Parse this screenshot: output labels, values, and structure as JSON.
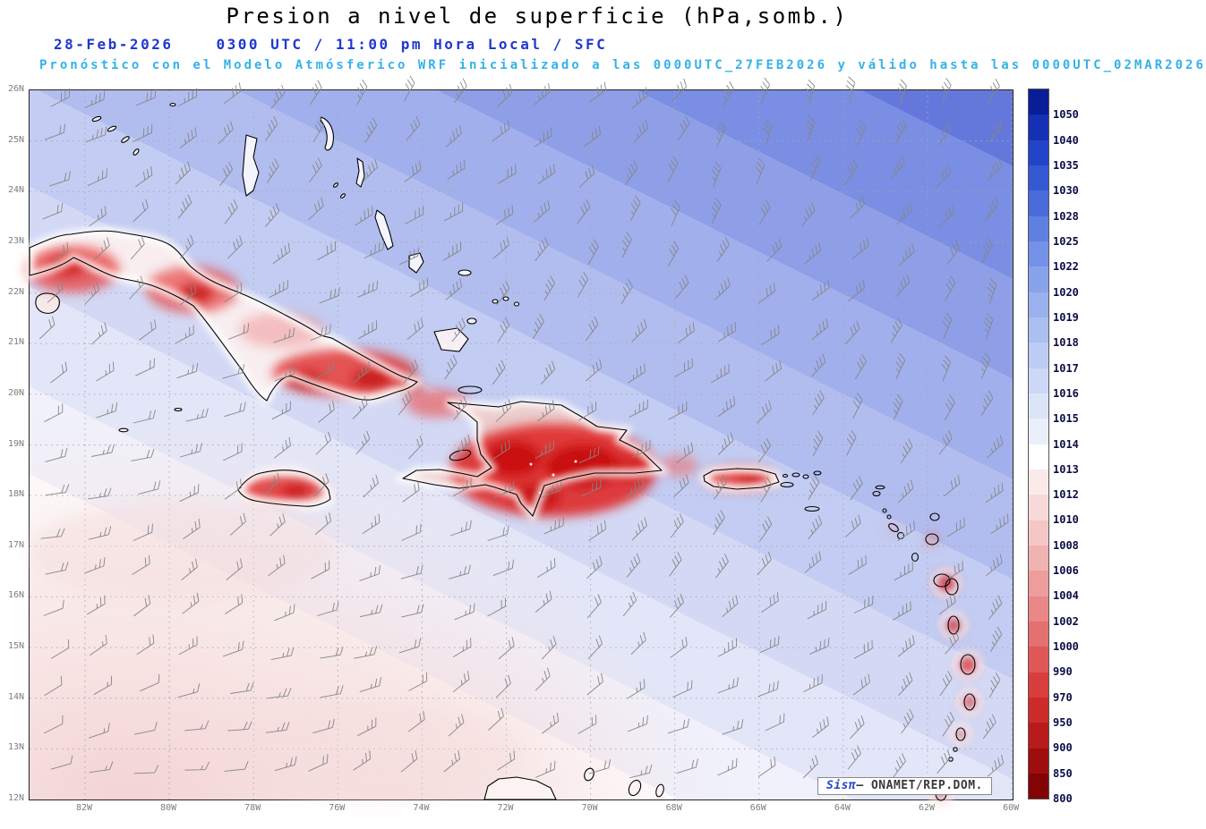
{
  "title": "Presion a nivel de superficie (hPa,somb.)",
  "header": {
    "date": "28-Feb-2026",
    "valid_time": "0300 UTC / 11:00 pm Hora Local / SFC",
    "forecast_note": "Pronóstico con el Modelo Atmósferico WRF inicializado a las 0000UTC_27FEB2026 y válido hasta las  0000UTC_02MAR2026"
  },
  "map": {
    "lat_ticks": [
      "26N",
      "25N",
      "24N",
      "23N",
      "22N",
      "21N",
      "20N",
      "19N",
      "18N",
      "17N",
      "16N",
      "15N",
      "14N",
      "13N",
      "12N"
    ],
    "lon_ticks": [
      "82W",
      "80W",
      "78W",
      "76W",
      "74W",
      "72W",
      "70W",
      "68W",
      "66W",
      "64W",
      "62W",
      "60W"
    ]
  },
  "colorbar": {
    "unit": "hPa",
    "levels": [
      "1050",
      "1040",
      "1035",
      "1030",
      "1028",
      "1025",
      "1022",
      "1020",
      "1019",
      "1018",
      "1017",
      "1016",
      "1015",
      "1014",
      "1013",
      "1012",
      "1010",
      "1008",
      "1006",
      "1004",
      "1002",
      "1000",
      "990",
      "970",
      "950",
      "900",
      "850",
      "800"
    ],
    "colors": [
      "#081d96",
      "#1530b4",
      "#2343c8",
      "#3558d3",
      "#4a6cdb",
      "#5f80e1",
      "#7492e7",
      "#89a3eb",
      "#9bb1ee",
      "#acbff1",
      "#bdccf4",
      "#cdd8f6",
      "#dce4f8",
      "#ebeffb",
      "#ffffff",
      "#fbeaea",
      "#f8d9d9",
      "#f5c6c6",
      "#f1b2b2",
      "#ee9d9d",
      "#ea8787",
      "#e57070",
      "#e05757",
      "#d83e3e",
      "#cd2a2a",
      "#b81b1b",
      "#9e0e0e",
      "#830404"
    ]
  },
  "attribution": {
    "brand": "Sisπ",
    "text": "– ONAMET/REP.DOM."
  },
  "chart_data": {
    "type": "heatmap",
    "title": "Presion a nivel de superficie (hPa,somb.)",
    "x_ticks": [
      "82W",
      "80W",
      "78W",
      "76W",
      "74W",
      "72W",
      "70W",
      "68W",
      "66W",
      "64W",
      "62W",
      "60W"
    ],
    "y_ticks": [
      "26N",
      "25N",
      "24N",
      "23N",
      "22N",
      "21N",
      "20N",
      "19N",
      "18N",
      "17N",
      "16N",
      "15N",
      "14N",
      "13N",
      "12N"
    ],
    "colorbar_levels_hPa": [
      1050,
      1040,
      1035,
      1030,
      1028,
      1025,
      1022,
      1020,
      1019,
      1018,
      1017,
      1016,
      1015,
      1014,
      1013,
      1012,
      1010,
      1008,
      1006,
      1004,
      1002,
      1000,
      990,
      970,
      950,
      900,
      850,
      800
    ],
    "legend_position": "right",
    "description": "Sea-level pressure shading with wind barbs: higher pressure (blue, ~1018-1028 hPa) over the northeast Atlantic, near 1013-1014 hPa (white/pink) over the southwest Caribbean, strong red shading over Cuba, Hispaniola, Jamaica, Puerto Rico and the Lesser Antilles"
  }
}
